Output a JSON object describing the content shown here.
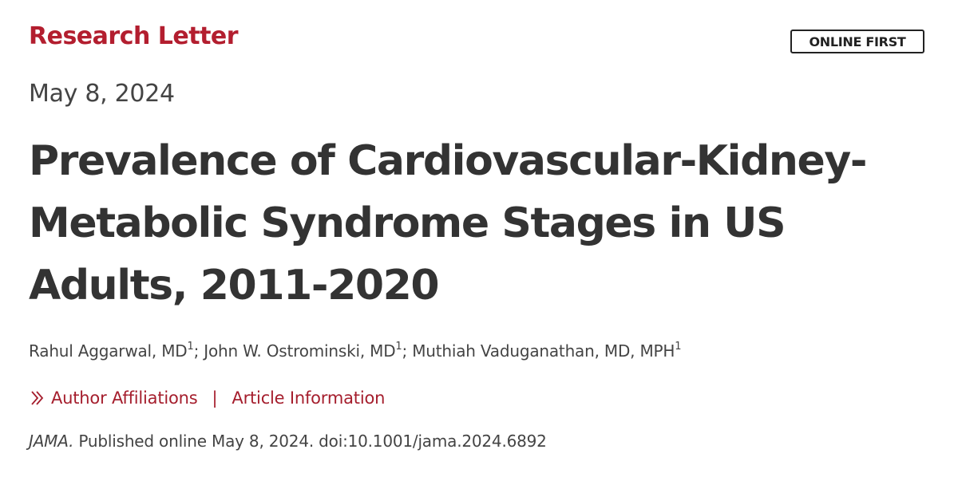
{
  "header": {
    "article_type": "Research Letter",
    "badge": "ONLINE FIRST",
    "date": "May 8, 2024"
  },
  "article": {
    "title_lines": [
      "Prevalence of Cardiovascular-Kidney-",
      "Metabolic Syndrome Stages in US",
      "Adults, 2011-2020"
    ],
    "authors": [
      {
        "name": "Rahul Aggarwal, MD",
        "affiliation": "1"
      },
      {
        "name": "John W. Ostrominski, MD",
        "affiliation": "1"
      },
      {
        "name": "Muthiah Vaduganathan, MD, MPH",
        "affiliation": "1"
      }
    ],
    "author_separator": ";"
  },
  "links": {
    "affiliations": "Author Affiliations",
    "separator": "|",
    "article_info": "Article Information",
    "chevron_icon": "double-chevron-right-icon"
  },
  "citation": {
    "journal": "JAMA.",
    "text": " Published online May 8, 2024. doi:10.1001/jama.2024.6892"
  },
  "colors": {
    "accent": "#b31e2f",
    "link": "#a51e2d",
    "text": "#333333"
  }
}
